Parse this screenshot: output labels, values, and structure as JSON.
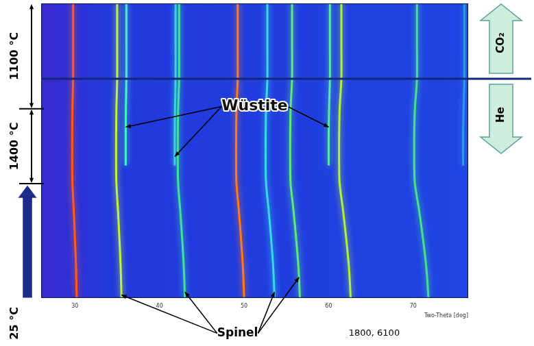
{
  "chart_data": {
    "type": "line",
    "x_label": "Two-Theta [deg]",
    "xlim": [
      26,
      76.5
    ],
    "xticks": [
      30,
      40,
      50,
      60,
      70
    ],
    "ylim": [
      0,
      100
    ],
    "tick_labels": "x",
    "grid": false,
    "y": [
      0,
      10,
      20,
      30,
      38.8,
      45,
      55,
      64.2,
      74.4,
      87,
      100
    ],
    "series": [
      {
        "color": "#ff5a1a",
        "x": [
          30.2,
          30.13,
          30.0,
          29.85,
          29.7,
          29.68,
          29.68,
          29.7,
          29.78,
          29.78,
          29.78
        ]
      },
      {
        "color": "#c0f040",
        "x": [
          35.5,
          35.41,
          35.26,
          35.08,
          34.9,
          34.87,
          34.87,
          34.9,
          34.99,
          34.99,
          34.99
        ]
      },
      {
        "color": "#40e0a0",
        "x": [
          43.0,
          42.88,
          42.68,
          42.44,
          42.2,
          42.16,
          42.16,
          42.2,
          42.32,
          42.32,
          42.32
        ]
      },
      {
        "color": "#ff7a1a",
        "x": [
          50.0,
          49.87,
          49.64,
          49.37,
          49.1,
          49.06,
          49.06,
          49.1,
          49.24,
          49.24,
          49.24
        ]
      },
      {
        "color": "#38d8e8",
        "x": [
          53.6,
          53.45,
          53.2,
          52.9,
          52.6,
          52.55,
          52.55,
          52.6,
          52.75,
          52.75,
          52.75
        ]
      },
      {
        "color": "#60e880",
        "x": [
          56.6,
          56.44,
          56.16,
          55.83,
          55.5,
          55.45,
          55.45,
          55.5,
          55.67,
          55.67,
          55.67
        ]
      },
      {
        "color": "#b0f040",
        "x": [
          62.6,
          62.41,
          62.08,
          61.69,
          61.3,
          61.24,
          61.24,
          61.3,
          61.5,
          61.5,
          61.5
        ]
      },
      {
        "color": "#48e090",
        "x": [
          71.8,
          71.56,
          71.16,
          70.68,
          70.2,
          70.12,
          70.12,
          70.2,
          70.44,
          70.44,
          70.44
        ]
      },
      {
        "color": "#48f0c8",
        "x": [
          null,
          null,
          null,
          null,
          null,
          36.0,
          36.0,
          36.02,
          36.08,
          36.08,
          36.08
        ]
      },
      {
        "color": "#38d0e8",
        "x": [
          null,
          null,
          null,
          null,
          null,
          41.8,
          41.8,
          41.83,
          41.9,
          41.9,
          41.9
        ]
      },
      {
        "color": "#58e8a8",
        "x": [
          null,
          null,
          null,
          null,
          null,
          60.0,
          60.0,
          60.05,
          60.15,
          60.15,
          60.15
        ]
      },
      {
        "color": "#3098e8",
        "x": [
          null,
          null,
          null,
          null,
          null,
          75.9,
          75.9,
          75.95,
          76.05,
          76.05,
          76.05
        ]
      }
    ],
    "segments": [
      {
        "label": "25 °C",
        "y": [
          0,
          38.8
        ]
      },
      {
        "label": "1400 °C",
        "y": [
          38.8,
          64.2
        ]
      },
      {
        "label": "1100 °C",
        "y": [
          64.2,
          100
        ]
      }
    ],
    "gas_switch": {
      "y": 74.4,
      "above": "CO₂",
      "below": "He"
    },
    "annotations": [
      {
        "text": "Wüstite",
        "points": [
          [
            36.0,
            58
          ],
          [
            41.8,
            48
          ],
          [
            60.0,
            58
          ]
        ]
      },
      {
        "text": "Spinel",
        "points": [
          [
            35.5,
            1
          ],
          [
            43.0,
            2
          ],
          [
            53.6,
            2
          ],
          [
            56.5,
            7
          ]
        ]
      },
      {
        "text": "1800, 6100"
      }
    ]
  }
}
